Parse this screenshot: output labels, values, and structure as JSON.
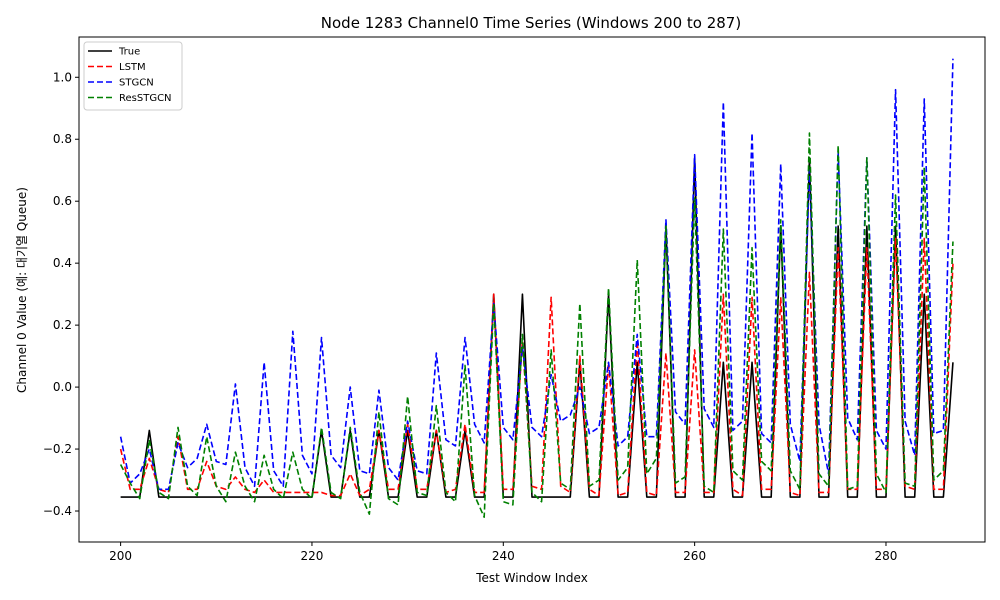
{
  "chart_data": {
    "type": "line",
    "title": "Node 1283 Channel0 Time Series (Windows 200 to 287)",
    "xlabel": "Test Window Index",
    "ylabel": "Channel 0 Value (예: 대기열 Queue)",
    "xlim": [
      195.65,
      290.35
    ],
    "ylim": [
      -0.5,
      1.13
    ],
    "xticks": [
      200,
      220,
      240,
      260,
      280
    ],
    "yticks": [
      -0.4,
      -0.2,
      0.0,
      0.2,
      0.4,
      0.6,
      0.8,
      1.0
    ],
    "tick_labels_x": [
      "200",
      "220",
      "240",
      "260",
      "280"
    ],
    "tick_labels_y": [
      "−0.4",
      "−0.2",
      "0.0",
      "0.2",
      "0.4",
      "0.6",
      "0.8",
      "1.0"
    ],
    "grid": false,
    "legend_position": "top-left",
    "x_start": 200,
    "series": [
      {
        "name": "True",
        "color": "#000000",
        "dash": "solid",
        "values": [
          -0.355,
          -0.355,
          -0.355,
          -0.14,
          -0.355,
          -0.355,
          -0.355,
          -0.355,
          -0.355,
          -0.355,
          -0.355,
          -0.355,
          -0.355,
          -0.355,
          -0.355,
          -0.355,
          -0.355,
          -0.355,
          -0.355,
          -0.355,
          -0.355,
          -0.14,
          -0.355,
          -0.355,
          -0.14,
          -0.355,
          -0.355,
          -0.14,
          -0.355,
          -0.355,
          -0.14,
          -0.355,
          -0.355,
          -0.14,
          -0.355,
          -0.355,
          -0.14,
          -0.355,
          -0.355,
          0.3,
          -0.355,
          -0.355,
          0.3,
          -0.355,
          -0.355,
          -0.355,
          -0.355,
          -0.355,
          0.08,
          -0.355,
          -0.355,
          0.3,
          -0.355,
          -0.355,
          0.08,
          -0.355,
          -0.355,
          0.52,
          -0.355,
          -0.355,
          0.74,
          -0.355,
          -0.355,
          0.08,
          -0.355,
          -0.355,
          0.08,
          -0.355,
          -0.355,
          0.52,
          -0.355,
          -0.355,
          0.74,
          -0.355,
          -0.355,
          0.52,
          -0.355,
          -0.355,
          0.52,
          -0.355,
          -0.355,
          0.52,
          -0.355,
          -0.355,
          0.3,
          -0.355,
          -0.355,
          0.08
        ]
      },
      {
        "name": "LSTM",
        "color": "#ff0000",
        "dash": "dashed",
        "values": [
          -0.2,
          -0.33,
          -0.33,
          -0.23,
          -0.33,
          -0.34,
          -0.16,
          -0.33,
          -0.33,
          -0.24,
          -0.32,
          -0.33,
          -0.29,
          -0.33,
          -0.34,
          -0.3,
          -0.34,
          -0.34,
          -0.34,
          -0.34,
          -0.34,
          -0.34,
          -0.35,
          -0.35,
          -0.28,
          -0.35,
          -0.33,
          -0.14,
          -0.33,
          -0.33,
          -0.12,
          -0.33,
          -0.33,
          -0.14,
          -0.34,
          -0.33,
          -0.12,
          -0.34,
          -0.34,
          0.3,
          -0.33,
          -0.33,
          0.15,
          -0.32,
          -0.33,
          0.29,
          -0.32,
          -0.34,
          0.1,
          -0.33,
          -0.35,
          0.08,
          -0.35,
          -0.34,
          0.15,
          -0.34,
          -0.35,
          0.11,
          -0.34,
          -0.34,
          0.12,
          -0.34,
          -0.34,
          0.3,
          -0.33,
          -0.35,
          0.29,
          -0.33,
          -0.33,
          0.29,
          -0.34,
          -0.35,
          0.37,
          -0.34,
          -0.34,
          0.45,
          -0.33,
          -0.33,
          0.45,
          -0.33,
          -0.33,
          0.48,
          -0.32,
          -0.33,
          0.48,
          -0.33,
          -0.33,
          0.4
        ]
      },
      {
        "name": "STGCN",
        "color": "#0000ff",
        "dash": "dashed",
        "values": [
          -0.16,
          -0.31,
          -0.28,
          -0.2,
          -0.33,
          -0.33,
          -0.18,
          -0.26,
          -0.23,
          -0.12,
          -0.24,
          -0.25,
          0.01,
          -0.26,
          -0.32,
          0.08,
          -0.27,
          -0.32,
          0.18,
          -0.22,
          -0.28,
          0.16,
          -0.22,
          -0.26,
          0.0,
          -0.27,
          -0.28,
          -0.01,
          -0.26,
          -0.3,
          -0.11,
          -0.27,
          -0.28,
          0.11,
          -0.17,
          -0.19,
          0.16,
          -0.12,
          -0.18,
          0.27,
          -0.13,
          -0.17,
          0.13,
          -0.13,
          -0.16,
          0.04,
          -0.11,
          -0.09,
          0.0,
          -0.15,
          -0.13,
          0.08,
          -0.19,
          -0.16,
          0.17,
          -0.16,
          -0.16,
          0.54,
          -0.08,
          -0.12,
          0.75,
          -0.07,
          -0.13,
          0.92,
          -0.14,
          -0.11,
          0.82,
          -0.15,
          -0.18,
          0.72,
          -0.12,
          -0.24,
          0.7,
          -0.12,
          -0.28,
          0.76,
          -0.1,
          -0.17,
          0.74,
          -0.14,
          -0.2,
          0.96,
          -0.11,
          -0.22,
          0.93,
          -0.15,
          -0.14,
          1.06
        ]
      },
      {
        "name": "ResSTGCN",
        "color": "#008000",
        "dash": "dashed",
        "values": [
          -0.25,
          -0.31,
          -0.36,
          -0.17,
          -0.34,
          -0.36,
          -0.13,
          -0.32,
          -0.35,
          -0.16,
          -0.32,
          -0.37,
          -0.21,
          -0.32,
          -0.37,
          -0.22,
          -0.33,
          -0.36,
          -0.21,
          -0.33,
          -0.36,
          -0.13,
          -0.34,
          -0.36,
          -0.13,
          -0.34,
          -0.41,
          -0.08,
          -0.36,
          -0.38,
          -0.03,
          -0.34,
          -0.35,
          -0.06,
          -0.34,
          -0.37,
          0.07,
          -0.35,
          -0.42,
          0.27,
          -0.37,
          -0.38,
          0.17,
          -0.34,
          -0.37,
          0.12,
          -0.31,
          -0.33,
          0.27,
          -0.32,
          -0.3,
          0.32,
          -0.3,
          -0.26,
          0.41,
          -0.28,
          -0.23,
          0.52,
          -0.31,
          -0.29,
          0.61,
          -0.32,
          -0.34,
          0.51,
          -0.27,
          -0.3,
          0.45,
          -0.24,
          -0.27,
          0.54,
          -0.27,
          -0.33,
          0.82,
          -0.28,
          -0.32,
          0.78,
          -0.33,
          -0.32,
          0.74,
          -0.28,
          -0.34,
          0.62,
          -0.31,
          -0.32,
          0.71,
          -0.3,
          -0.27,
          0.47
        ]
      }
    ]
  }
}
